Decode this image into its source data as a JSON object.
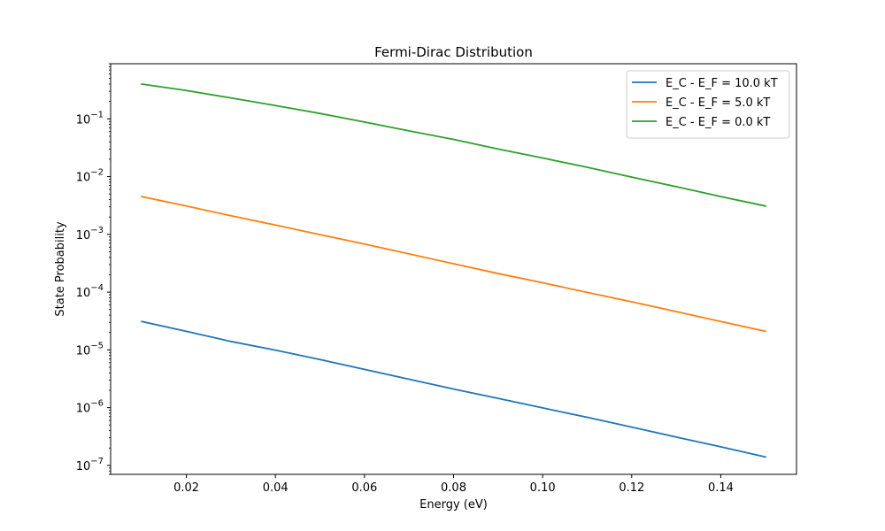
{
  "chart_data": {
    "type": "line",
    "title": "Fermi-Dirac Distribution",
    "xlabel": "Energy (eV)",
    "ylabel": "State Probability",
    "yscale": "log",
    "xlim": [
      0.003,
      0.157
    ],
    "ylim": [
      7e-08,
      0.9
    ],
    "x_ticks": [
      0.02,
      0.04,
      0.06,
      0.08,
      0.1,
      0.12,
      0.14
    ],
    "x_tick_labels": [
      "0.02",
      "0.04",
      "0.06",
      "0.08",
      "0.10",
      "0.12",
      "0.14"
    ],
    "y_ticks": [
      1e-07,
      1e-06,
      1e-05,
      0.0001,
      0.001,
      0.01,
      0.1
    ],
    "y_tick_labels": [
      {
        "base": "10",
        "exp": "−7"
      },
      {
        "base": "10",
        "exp": "−6"
      },
      {
        "base": "10",
        "exp": "−5"
      },
      {
        "base": "10",
        "exp": "−4"
      },
      {
        "base": "10",
        "exp": "−3"
      },
      {
        "base": "10",
        "exp": "−2"
      },
      {
        "base": "10",
        "exp": "−1"
      }
    ],
    "grid": false,
    "legend_position": "top-right",
    "x": [
      0.01,
      0.02,
      0.03,
      0.04,
      0.05,
      0.06,
      0.07,
      0.08,
      0.09,
      0.1,
      0.11,
      0.12,
      0.13,
      0.14,
      0.15
    ],
    "series": [
      {
        "name": "E_C - E_F = 10.0 kT",
        "color": "#1f77b4",
        "values": [
          3.1e-05,
          2.1e-05,
          1.4e-05,
          9.9e-06,
          6.8e-06,
          4.6e-06,
          3.1e-06,
          2.1e-06,
          1.45e-06,
          9.9e-07,
          6.8e-07,
          4.6e-07,
          3.1e-07,
          2.1e-07,
          1.4e-07
        ]
      },
      {
        "name": "E_C - E_F = 5.0 kT",
        "color": "#ff7f0e",
        "values": [
          0.0045,
          0.0031,
          0.0021,
          0.00145,
          0.00099,
          0.00068,
          0.00046,
          0.00031,
          0.00021,
          0.000145,
          9.9e-05,
          6.8e-05,
          4.6e-05,
          3.1e-05,
          2.1e-05
        ]
      },
      {
        "name": "E_C - E_F = 0.0 kT",
        "color": "#2ca02c",
        "values": [
          0.4,
          0.31,
          0.23,
          0.17,
          0.124,
          0.088,
          0.062,
          0.044,
          0.03,
          0.021,
          0.0145,
          0.0098,
          0.0067,
          0.0045,
          0.0031
        ]
      }
    ]
  }
}
